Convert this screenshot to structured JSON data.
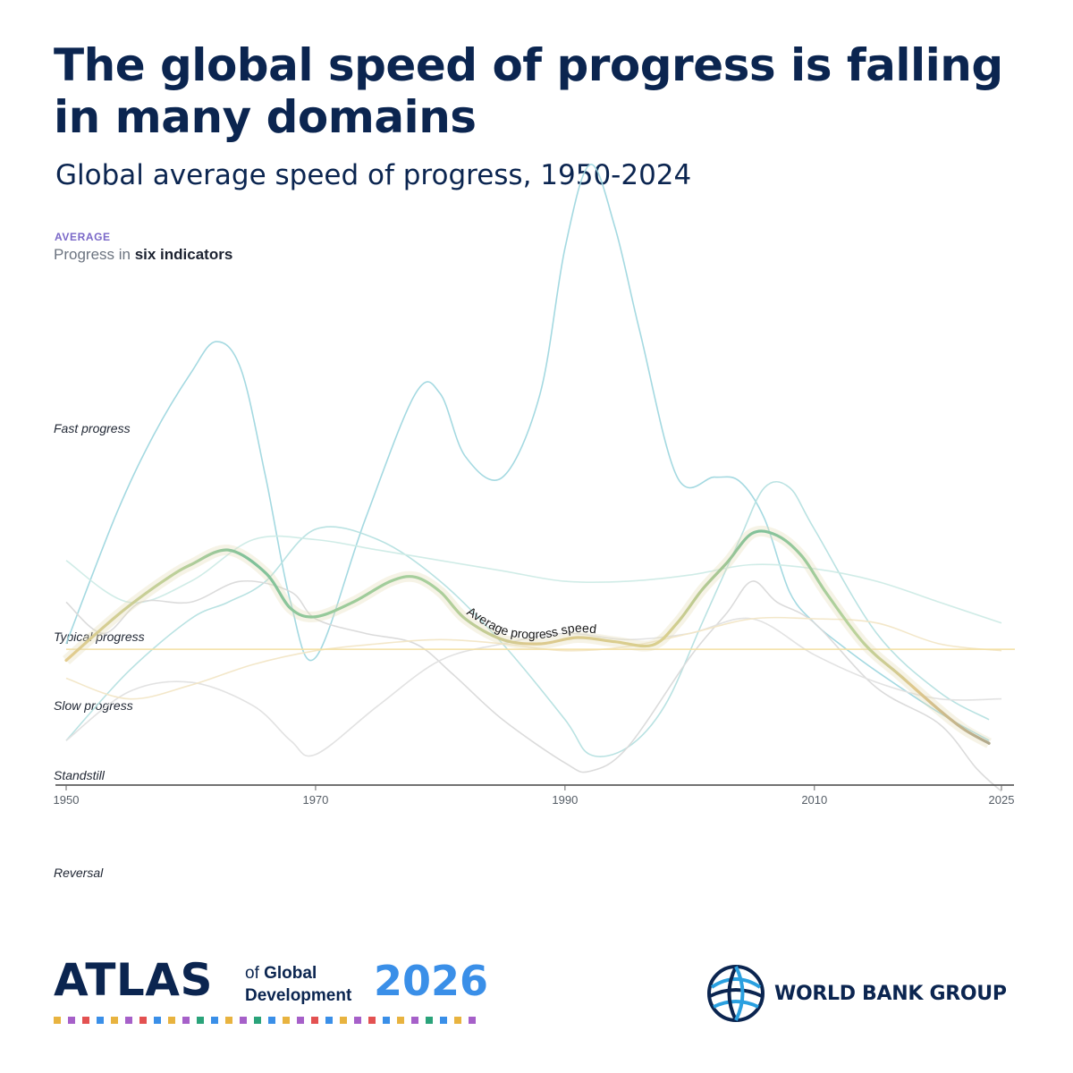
{
  "header": {
    "title": "The global speed of progress is falling in many domains",
    "subtitle": "Global average speed of progress, 1950-2024"
  },
  "legend": {
    "tag": "AVERAGE",
    "prefix": "Progress in ",
    "strong": "six indicators"
  },
  "levels": {
    "fast": "Fast progress",
    "typical": "Typical progress",
    "slow": "Slow progress",
    "standstill": "Standstill",
    "reversal": "Reversal"
  },
  "colors": {
    "navy": "#0b2550",
    "accent_blue": "#3a8fe8",
    "avg_tag": "#7a68c8",
    "typical_line": "#f3dfa2",
    "avg_green": "#7fc19a",
    "avg_yellow": "#dfc78c",
    "indicator_teal": "#9fd7df",
    "indicator_light_teal": "#cdebe6",
    "indicator_grey": "#d9d9d9",
    "indicator_cream": "#f2e6c6"
  },
  "chart_data": {
    "type": "line",
    "title": "Global average speed of progress, 1950-2024",
    "xlabel": "",
    "ylabel": "",
    "xlim": [
      1950,
      2025
    ],
    "ylim": [
      -1,
      5
    ],
    "x_ticks": [
      1950,
      1970,
      1990,
      2010,
      2025
    ],
    "y_levels": [
      {
        "label": "Fast progress",
        "value": 2
      },
      {
        "label": "Typical progress",
        "value": 1
      },
      {
        "label": "Slow progress",
        "value": 0.5
      },
      {
        "label": "Standstill",
        "value": 0
      },
      {
        "label": "Reversal",
        "value": -1
      }
    ],
    "reference_line": {
      "label": "Typical progress",
      "value": 0.96
    },
    "average_series": {
      "name": "Average progress speed",
      "x": [
        1950,
        1953,
        1955,
        1958,
        1960,
        1963,
        1966,
        1968,
        1970,
        1973,
        1976,
        1978,
        1980,
        1982,
        1985,
        1988,
        1991,
        1994,
        1997,
        1999,
        2001,
        2003,
        2005,
        2007,
        2009,
        2011,
        2014,
        2017,
        2020,
        2022,
        2024
      ],
      "y": [
        0.88,
        1.08,
        1.18,
        1.31,
        1.38,
        1.45,
        1.34,
        1.17,
        1.13,
        1.2,
        1.3,
        1.32,
        1.25,
        1.12,
        1.02,
        1.0,
        1.03,
        1.01,
        0.99,
        1.1,
        1.26,
        1.39,
        1.53,
        1.52,
        1.42,
        1.24,
        1.0,
        0.76,
        0.52,
        0.38,
        0.28
      ]
    },
    "indicator_series": [
      {
        "x": [
          1950,
          1954,
          1957,
          1960,
          1962,
          1964,
          1966,
          1968,
          1970,
          1974,
          1978,
          1980,
          1982,
          1985,
          1988,
          1990,
          1992,
          1994,
          1996,
          1999,
          2002,
          2004,
          2006,
          2008,
          2010,
          2012,
          2015,
          2020,
          2024
        ],
        "y": [
          1.0,
          1.62,
          2.0,
          2.3,
          2.45,
          2.32,
          1.8,
          1.2,
          0.9,
          1.6,
          2.2,
          2.2,
          1.9,
          1.8,
          2.2,
          2.9,
          3.3,
          3.0,
          2.5,
          1.8,
          1.8,
          1.78,
          1.6,
          1.25,
          1.1,
          1.0,
          0.8,
          0.5,
          0.3
        ]
      },
      {
        "x": [
          1950,
          1955,
          1960,
          1963,
          1966,
          1970,
          1975,
          1980,
          1985,
          1990,
          1992,
          1995,
          1998,
          2001,
          2004,
          2006,
          2008,
          2010,
          2015,
          2020,
          2024
        ],
        "y": [
          0.3,
          0.8,
          1.12,
          1.2,
          1.3,
          1.55,
          1.5,
          1.3,
          1.0,
          0.45,
          0.2,
          0.25,
          0.55,
          1.1,
          1.5,
          1.75,
          1.75,
          1.55,
          1.05,
          0.65,
          0.45
        ]
      },
      {
        "x": [
          1950,
          1955,
          1960,
          1965,
          1970,
          1975,
          1980,
          1985,
          1990,
          1995,
          2000,
          2005,
          2010,
          2015,
          2020,
          2025
        ],
        "y": [
          1.4,
          1.2,
          1.3,
          1.5,
          1.5,
          1.45,
          1.4,
          1.35,
          1.3,
          1.3,
          1.33,
          1.38,
          1.36,
          1.3,
          1.2,
          1.1
        ]
      },
      {
        "x": [
          1950,
          1953,
          1956,
          1960,
          1964,
          1968,
          1970,
          1974,
          1978,
          1981,
          1985,
          1990,
          1992,
          1995,
          2000,
          2003,
          2005,
          2007,
          2010,
          2015,
          2020,
          2023,
          2025
        ],
        "y": [
          1.2,
          1.05,
          1.2,
          1.2,
          1.3,
          1.25,
          1.12,
          1.05,
          1.0,
          0.78,
          0.45,
          0.14,
          0.08,
          0.25,
          0.9,
          1.15,
          1.3,
          1.2,
          1.1,
          0.68,
          0.42,
          0.1,
          -0.1
        ]
      },
      {
        "x": [
          1950,
          1955,
          1960,
          1965,
          1968,
          1970,
          1975,
          1980,
          1985,
          1990,
          1995,
          2000,
          2005,
          2010,
          2015,
          2020,
          2025
        ],
        "y": [
          0.3,
          0.65,
          0.72,
          0.55,
          0.3,
          0.2,
          0.55,
          0.88,
          1.0,
          1.05,
          1.02,
          1.05,
          1.12,
          0.92,
          0.72,
          0.6,
          0.6
        ]
      },
      {
        "x": [
          1950,
          1955,
          1960,
          1965,
          1970,
          1975,
          1980,
          1985,
          1990,
          1995,
          2000,
          2005,
          2010,
          2015,
          2020,
          2025
        ],
        "y": [
          0.75,
          0.6,
          0.7,
          0.85,
          0.95,
          1.0,
          1.02,
          1.0,
          0.95,
          0.98,
          1.05,
          1.12,
          1.12,
          1.1,
          1.0,
          0.95
        ]
      }
    ]
  },
  "footer": {
    "atlas_word": "ATLAS",
    "atlas_of": "of ",
    "atlas_global": "Global",
    "atlas_development": "Development",
    "atlas_year": "2026",
    "atlas_dot_colors": [
      "#e8b33f",
      "#a660c9",
      "#e35151",
      "#3a8fe8",
      "#e8b33f",
      "#a660c9",
      "#e35151",
      "#3a8fe8",
      "#e8b33f",
      "#a660c9",
      "#2aa37a",
      "#3a8fe8",
      "#e8b33f",
      "#a660c9",
      "#2aa37a",
      "#3a8fe8",
      "#e8b33f",
      "#a660c9",
      "#e35151",
      "#3a8fe8",
      "#e8b33f",
      "#a660c9",
      "#e35151",
      "#3a8fe8",
      "#e8b33f",
      "#a660c9",
      "#2aa37a",
      "#3a8fe8",
      "#e8b33f",
      "#a660c9"
    ],
    "org_name": "WORLD BANK GROUP",
    "org_logo_icon": "globe-icon"
  }
}
